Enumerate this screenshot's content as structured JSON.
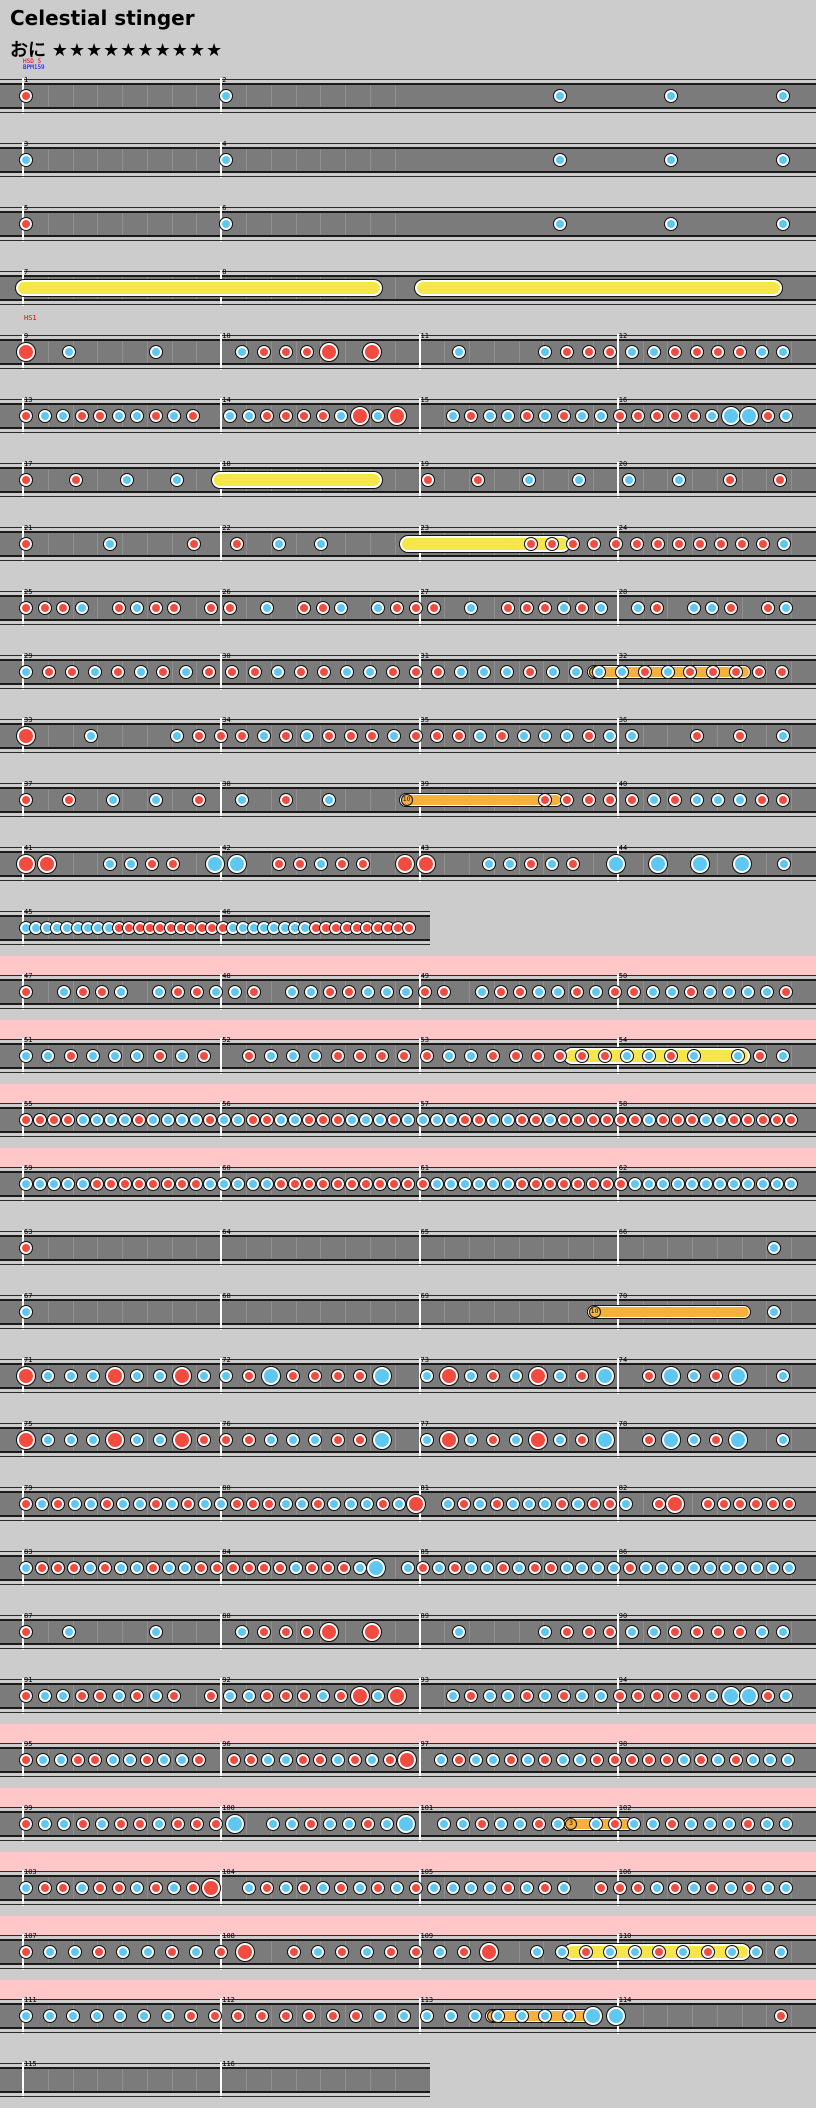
{
  "song": {
    "title": "Celestial stinger",
    "difficulty_label": "おに",
    "stars": "★★★★★★★★★★",
    "header_tags": [
      "HSD 5",
      "BPM159"
    ],
    "tag_color_1": "#e00000",
    "tag_color_2": "#0000e0"
  },
  "colors": {
    "don": "#f24b3f",
    "ka": "#5ec8f2",
    "roll": "#f7e64b",
    "balloon": "#f5b03d",
    "lane": "#7b7b7b",
    "gogo": "#ffc7c7"
  },
  "row_tags": {
    "9": "HS1"
  },
  "rows": [
    {
      "m": [
        "1",
        "2"
      ],
      "gogo": false,
      "notes": "d........k..............k....k....k"
    },
    {
      "m": [
        "3",
        "4"
      ],
      "gogo": false,
      "notes": "k........k..............k....k....k"
    },
    {
      "m": [
        "5",
        "6"
      ],
      "gogo": false,
      "notes": "d........k..............k....k....k"
    },
    {
      "m": [
        "7",
        "8"
      ],
      "gogo": false,
      "rolls": [
        [
          0,
          0.45
        ],
        [
          0.51,
          0.96
        ]
      ],
      "notes": ""
    },
    {
      "m": [
        "9",
        "10",
        "11",
        "12"
      ],
      "gogo": false,
      "notes": "D.k...k...kdddD.D...k...kdddkkddddkk"
    },
    {
      "m": [
        "13",
        "14",
        "15",
        "16"
      ],
      "gogo": false,
      "notes": "dkkddkkdkd.kkddddkDkD..kdkkdkdkkdddddkKKdk"
    },
    {
      "m": [
        "17",
        "18",
        "19",
        "20"
      ],
      "gogo": false,
      "rolls": [
        [
          0.25,
          0.45
        ]
      ],
      "notes": "d.d.k.k.........d.d.k.k.k.k.d.d"
    },
    {
      "m": [
        "21",
        "22",
        "23",
        "24"
      ],
      "gogo": false,
      "rolls": [
        [
          0.49,
          0.69
        ]
      ],
      "notes": "d...k...d.d.k.k.........ddddddddddddk"
    },
    {
      "m": [
        "25",
        "26",
        "27",
        "28"
      ],
      "gogo": false,
      "notes": "dddk.dkdd.dd.k.ddk.kddd.k.dddkdk.kd.kkd.dk"
    },
    {
      "m": [
        "29",
        "30",
        "31",
        "32"
      ],
      "gogo": false,
      "balloons": [
        [
          0.73,
          0.92,
          "12"
        ]
      ],
      "notes": "kddkdkdkdddkddkkdddkkkdkkkkdkddddd"
    },
    {
      "m": [
        "33",
        "34",
        "35",
        "36"
      ],
      "gogo": false,
      "notes": "D..k...kdddkdkdddkdddkdkkkdkk..d.d.k"
    },
    {
      "m": [
        "37",
        "38",
        "39",
        "40"
      ],
      "gogo": false,
      "balloons": [
        [
          0.49,
          0.68,
          "10"
        ]
      ],
      "notes": "d.d.k.k.d.k.d.k.........dddddkdkkkdd"
    },
    {
      "m": [
        "41",
        "42",
        "43",
        "44"
      ],
      "gogo": false,
      "notes": "DD..kkdd.KK.ddkdd.DD..kkdkd.K.K.K.K.k"
    },
    {
      "m": [
        "45",
        "46"
      ],
      "gogo": false,
      "width": 430,
      "notes": "kkkkkkkkkdddddddddddkkkkkkkkdddddddddd"
    },
    {
      "m": [
        "47",
        "48",
        "49",
        "50"
      ],
      "gogo": true,
      "notes": "d.kddk.kddkkd.kkddkkkdd.kddkkdkddkkdkkkkd"
    },
    {
      "m": [
        "51",
        "52",
        "53",
        "54"
      ],
      "gogo": true,
      "rolls": [
        [
          0.7,
          0.92
        ]
      ],
      "notes": "kkdkkkdkd.dkkkdddddkkddddddkkdk.kdk"
    },
    {
      "m": [
        "55",
        "56",
        "57",
        "58"
      ],
      "gogo": true,
      "notes": "ddddkkkkdkkkkdkkddkkdddkkkdkkkkddkkddkddddddkdddkkddddd"
    },
    {
      "m": [
        "59",
        "60",
        "61",
        "62"
      ],
      "gogo": true,
      "notes": "kkkkkddddddddkkkkkdddddddddddkkkkkkddddddddkkkkkkkkkkkk"
    },
    {
      "m": [
        "63",
        "64",
        "65",
        "66"
      ],
      "gogo": false,
      "notes": "d.......................k"
    },
    {
      "m": [
        "67",
        "68",
        "69",
        "70"
      ],
      "gogo": false,
      "balloons": [
        [
          0.73,
          0.92,
          "10"
        ]
      ],
      "notes": "k.......................k"
    },
    {
      "m": [
        "71",
        "72",
        "73",
        "74"
      ],
      "gogo": false,
      "notes": "DkkkDkkDkkdKddddK.kDkdkDkdK.dKkdK.k"
    },
    {
      "m": [
        "75",
        "76",
        "77",
        "78"
      ],
      "gogo": false,
      "notes": "DkkkDkkDdddkkkddK.kDkdkDkdK.dKkdK.k"
    },
    {
      "m": [
        "79",
        "80",
        "81",
        "82"
      ],
      "gogo": false,
      "notes": "dkdkkdkkdkdkkdddkkdkkkdkD.kdkdkkkdkddk.dD.dddddd"
    },
    {
      "m": [
        "83",
        "84",
        "85",
        "86"
      ],
      "gogo": false,
      "notes": "kdddkdkkdkkddddddkdddkK.kdkdkkdkddkkkkdkkkkkkkkkk"
    },
    {
      "m": [
        "87",
        "88",
        "89",
        "90"
      ],
      "gogo": false,
      "notes": "d.k...k...kdddD.D...k...kdddkkddddkk"
    },
    {
      "m": [
        "91",
        "92",
        "93",
        "94"
      ],
      "gogo": false,
      "notes": "dkkddkdkd.dkkdddkdDkD..kdkkdkdkkdddddkKKdk"
    },
    {
      "m": [
        "95",
        "96",
        "97",
        "98"
      ],
      "gogo": true,
      "notes": "dkkddkkdkkd.ddkkddkdkdD.kdkkdkdkkdddddkdkdkkk"
    },
    {
      "m": [
        "99",
        "100",
        "101",
        "102"
      ],
      "gogo": true,
      "balloons": [
        [
          0.7,
          0.77,
          "3"
        ]
      ],
      "notes": "dkkdkddkdddK.kkdkkdkK.kkdkkdk.kdkkdkkkdkk"
    },
    {
      "m": [
        "103",
        "104",
        "105",
        "106"
      ],
      "gogo": true,
      "notes": "kddkddkdkdD.kdkdkdkdkdkkkkdkdk.dddkdkdkdkk"
    },
    {
      "m": [
        "107",
        "108",
        "109",
        "110"
      ],
      "gogo": true,
      "rolls": [
        [
          0.7,
          0.92
        ]
      ],
      "notes": "dkkdkkdkdD.dkdkddkdD.kkdkkdkdkkk"
    },
    {
      "m": [
        "111",
        "112",
        "113",
        "114"
      ],
      "gogo": true,
      "balloons": [
        [
          0.6,
          0.72,
          "5"
        ]
      ],
      "notes": "kkkkkkkddddddddkkkkkkkkkKK......d"
    },
    {
      "m": [
        "115",
        "116"
      ],
      "gogo": false,
      "width": 430,
      "notes": ""
    }
  ]
}
